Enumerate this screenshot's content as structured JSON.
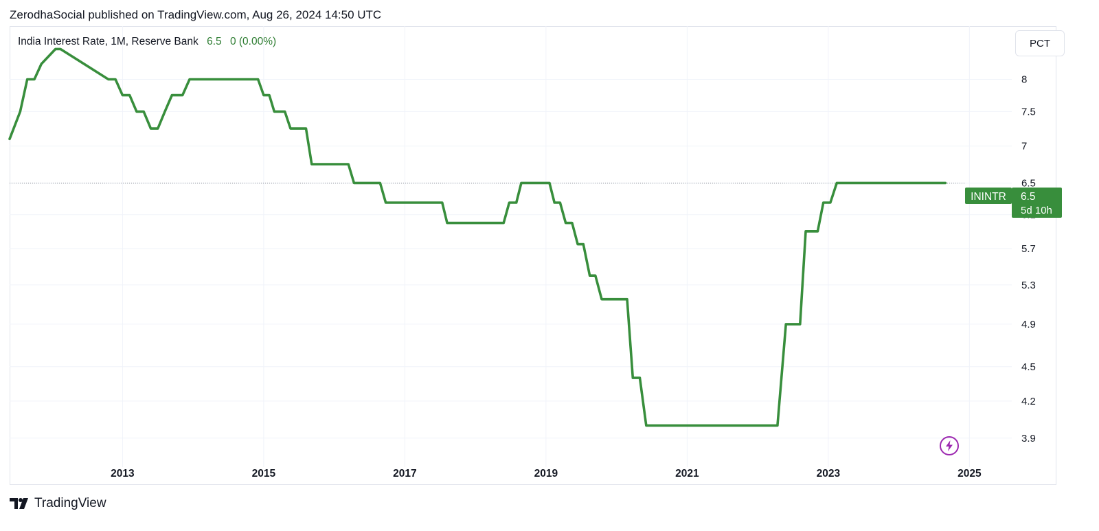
{
  "header": {
    "published_by": "ZerodhaSocial published on TradingView.com, Aug 26, 2024 14:50 UTC"
  },
  "legend": {
    "symbol_text": "India Interest Rate, 1M, Reserve Bank",
    "last_value": "6.5",
    "change": "0 (0.00%)"
  },
  "scale_button": {
    "label": "PCT"
  },
  "price_label": {
    "ticker": "ININTR",
    "value": "6.5",
    "countdown": "5d 10h"
  },
  "footer": {
    "brand": "TradingView"
  },
  "colors": {
    "line": "#388e3c",
    "label_bg": "#388e3c",
    "grid": "#f0f3fa",
    "axis_text": "#131722"
  },
  "chart_data": {
    "type": "line",
    "title": "India Interest Rate, 1M, Reserve Bank",
    "xlabel": "",
    "ylabel": "",
    "y_scale": "log",
    "x_ticks": [
      2013,
      2015,
      2017,
      2019,
      2021,
      2023,
      2025
    ],
    "y_ticks": [
      3.9,
      4.2,
      4.5,
      4.9,
      5.3,
      5.7,
      6.1,
      6.5,
      7,
      7.5,
      8
    ],
    "xlim": [
      2011.4,
      2025.6
    ],
    "ylim": [
      3.68,
      8.9
    ],
    "grid": true,
    "series": [
      {
        "name": "ININTR",
        "x": [
          2011.4,
          2011.55,
          2011.65,
          2011.75,
          2011.85,
          2012.05,
          2012.12,
          2012.8,
          2012.9,
          2013.0,
          2013.1,
          2013.2,
          2013.3,
          2013.4,
          2013.5,
          2013.6,
          2013.7,
          2013.85,
          2013.95,
          2014.0,
          2014.92,
          2015.0,
          2015.08,
          2015.15,
          2015.3,
          2015.38,
          2015.6,
          2015.68,
          2016.2,
          2016.28,
          2016.65,
          2016.73,
          2017.53,
          2017.6,
          2018.4,
          2018.48,
          2018.58,
          2018.65,
          2019.05,
          2019.12,
          2019.2,
          2019.28,
          2019.37,
          2019.45,
          2019.53,
          2019.62,
          2019.7,
          2019.79,
          2020.15,
          2020.23,
          2020.33,
          2020.42,
          2022.28,
          2022.4,
          2022.6,
          2022.68,
          2022.85,
          2022.93,
          2023.03,
          2023.12,
          2024.66
        ],
        "y": [
          7.1,
          7.5,
          8.0,
          8.0,
          8.25,
          8.5,
          8.5,
          8.0,
          8.0,
          7.75,
          7.75,
          7.5,
          7.5,
          7.25,
          7.25,
          7.5,
          7.75,
          7.75,
          8.0,
          8.0,
          8.0,
          7.75,
          7.75,
          7.5,
          7.5,
          7.25,
          7.25,
          6.75,
          6.75,
          6.5,
          6.5,
          6.25,
          6.25,
          6.0,
          6.0,
          6.25,
          6.25,
          6.5,
          6.5,
          6.25,
          6.25,
          6.0,
          6.0,
          5.75,
          5.75,
          5.4,
          5.4,
          5.15,
          5.15,
          4.4,
          4.4,
          4.0,
          4.0,
          4.9,
          4.9,
          5.9,
          5.9,
          6.25,
          6.25,
          6.5,
          6.5
        ]
      }
    ]
  }
}
